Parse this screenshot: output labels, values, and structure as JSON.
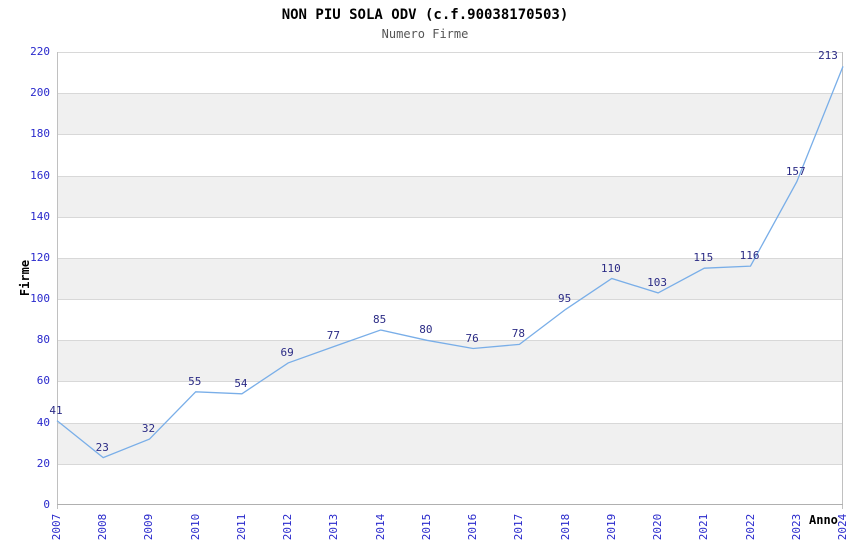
{
  "chart_data": {
    "type": "line",
    "title": "NON PIU SOLA ODV (c.f.90038170503)",
    "subtitle": "Numero Firme",
    "xlabel": "Anno",
    "ylabel": "Firme",
    "categories": [
      "2007",
      "2008",
      "2009",
      "2010",
      "2011",
      "2012",
      "2013",
      "2014",
      "2015",
      "2016",
      "2017",
      "2018",
      "2019",
      "2020",
      "2021",
      "2022",
      "2023",
      "2024"
    ],
    "series": [
      {
        "name": "Numero Firme",
        "values": [
          41,
          23,
          32,
          55,
          54,
          69,
          77,
          85,
          80,
          76,
          78,
          95,
          110,
          103,
          115,
          116,
          157,
          213
        ]
      }
    ],
    "ylim": [
      0,
      220
    ],
    "ytick_step": 20,
    "grid": "horizontal",
    "banded_rows": true,
    "legend_position": "none",
    "colors": {
      "line": "#79aee8",
      "tick_label": "#2929cc",
      "value_label": "#2b2b85",
      "band": "#f0f0f0",
      "gridline": "#d8d8d8",
      "plot_border": "#c0c0c0",
      "axis_line": "#b0b0b0",
      "title": "#000000",
      "subtitle": "#555555",
      "axis_title": "#000000"
    }
  }
}
